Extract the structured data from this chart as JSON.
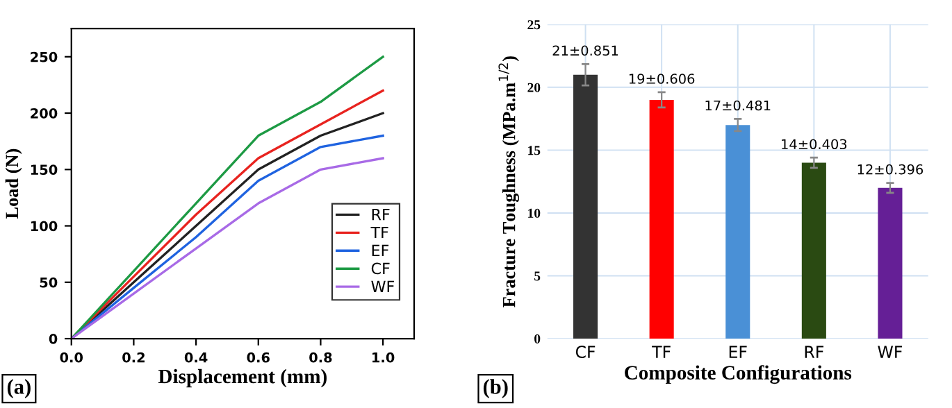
{
  "chart_data": [
    {
      "type": "line",
      "xlabel": "Displacement (mm)",
      "ylabel": "Load (N)",
      "x": [
        0,
        0.2,
        0.4,
        0.6,
        0.8,
        1.0
      ],
      "series": [
        {
          "name": "RF",
          "color": "#222222",
          "values": [
            0,
            50,
            100,
            150,
            180,
            200
          ]
        },
        {
          "name": "TF",
          "color": "#e8231f",
          "values": [
            0,
            55,
            110,
            160,
            190,
            220
          ]
        },
        {
          "name": "EF",
          "color": "#1f63e0",
          "values": [
            0,
            45,
            90,
            140,
            170,
            180
          ]
        },
        {
          "name": "CF",
          "color": "#1d9a44",
          "values": [
            0,
            60,
            120,
            180,
            210,
            250
          ]
        },
        {
          "name": "WF",
          "color": "#a86ae6",
          "values": [
            0,
            40,
            80,
            120,
            150,
            160
          ]
        }
      ],
      "xlim": [
        0,
        1.1
      ],
      "xticks": [
        {
          "value": 0,
          "label": "0.0"
        },
        0.2,
        0.4,
        0.6,
        0.8,
        {
          "value": 1,
          "label": "1.0"
        }
      ],
      "ylim": [
        0,
        275
      ],
      "yticks": [
        0,
        50,
        100,
        150,
        200,
        250
      ],
      "legend": "lower right",
      "grid": false,
      "annotations": [
        "(a)"
      ]
    },
    {
      "type": "bar",
      "xlabel": "Composite Configurations",
      "ylabel": "Fracture Toughness (MPa.m$^{1/2}$)",
      "categories": [
        "CF",
        "TF",
        "EF",
        "RF",
        "WF"
      ],
      "values": [
        21,
        19,
        17,
        14,
        12
      ],
      "colors": [
        "#333333",
        "#ff0000",
        "#4a90d6",
        "#2a4a12",
        "#651f96"
      ],
      "errors": [
        0.851,
        0.606,
        0.481,
        0.403,
        0.396
      ],
      "value_labels": [
        "21±0.851",
        "19±0.606",
        "17±0.481",
        "14±0.403",
        "12±0.396"
      ],
      "ylim": [
        0,
        25
      ],
      "yticks": [
        0,
        5,
        10,
        15,
        20,
        25
      ],
      "grid": true,
      "annotations": [
        "(b)"
      ]
    }
  ]
}
